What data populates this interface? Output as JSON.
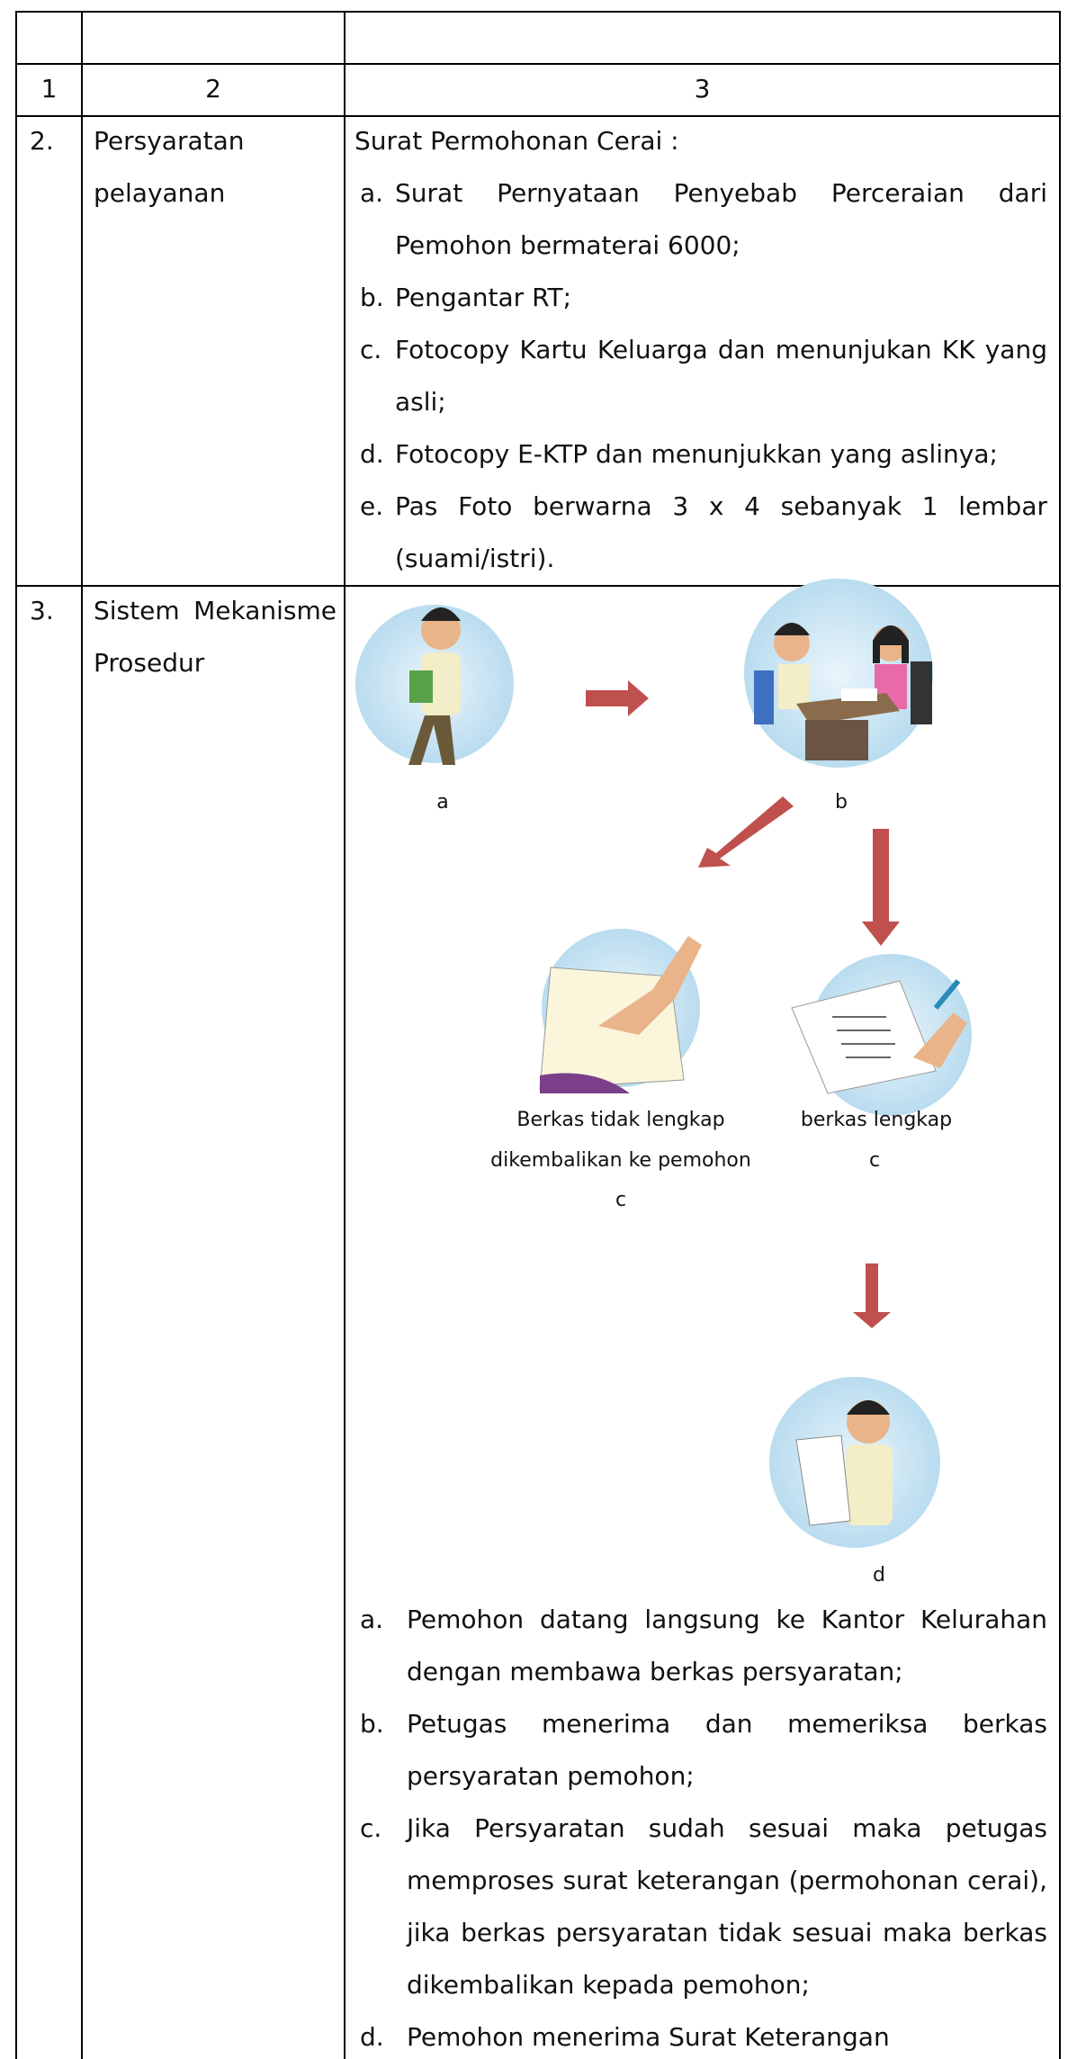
{
  "table": {
    "header": [
      "1",
      "2",
      "3"
    ],
    "rows": [
      {
        "no": "2.",
        "label": "Persyaratan pelayanan",
        "intro": "Surat Permohonan Cerai :",
        "items": [
          {
            "marker": "a.",
            "text": "Surat Pernyataan Penyebab Perceraian dari Pemohon bermaterai 6000;"
          },
          {
            "marker": "b.",
            "text": "Pengantar RT;"
          },
          {
            "marker": "c.",
            "text": "Fotocopy Kartu Keluarga dan menunjukan KK yang asli;"
          },
          {
            "marker": "d.",
            "text": "Fotocopy E-KTP dan menunjukkan yang aslinya;"
          },
          {
            "marker": "e.",
            "text": "Pas Foto berwarna 3 x 4 sebanyak 1 lembar (suami/istri)."
          }
        ]
      },
      {
        "no": "3.",
        "label": "Sistem Mekanisme Prosedur",
        "diagram": {
          "a": "a",
          "b": "b",
          "c1": [
            "Berkas tidak lengkap",
            "dikembalikan ke pemohon",
            "c"
          ],
          "c2": [
            "berkas lengkap",
            "c"
          ],
          "d": "d"
        },
        "items": [
          {
            "marker": "a.",
            "text": "Pemohon datang langsung ke Kantor Kelurahan dengan membawa berkas persyaratan;"
          },
          {
            "marker": "b.",
            "text": "Petugas menerima dan memeriksa berkas persyaratan pemohon;"
          },
          {
            "marker": "c.",
            "text": "Jika Persyaratan sudah sesuai maka petugas memproses surat keterangan (permohonan cerai), jika berkas persyaratan tidak sesuai maka berkas dikembalikan kepada pemohon;"
          },
          {
            "marker": "d.",
            "text": "Pemohon menerima Surat Keterangan"
          }
        ]
      }
    ]
  }
}
